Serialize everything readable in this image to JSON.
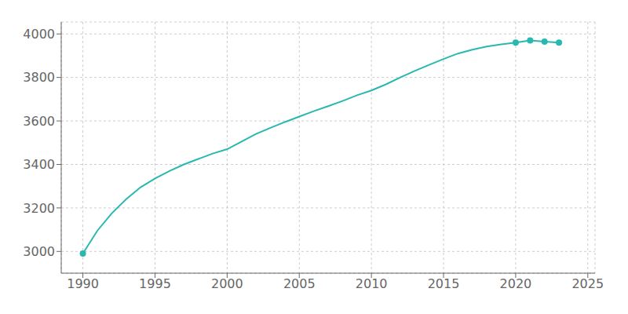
{
  "chart_data": {
    "type": "line",
    "x": [
      1990,
      1991,
      1992,
      1993,
      1994,
      1995,
      1996,
      1997,
      1998,
      1999,
      2000,
      2001,
      2002,
      2003,
      2004,
      2005,
      2006,
      2007,
      2008,
      2009,
      2010,
      2011,
      2012,
      2013,
      2014,
      2015,
      2016,
      2017,
      2018,
      2019,
      2020,
      2021,
      2022,
      2023
    ],
    "series": [
      {
        "type": "line",
        "color": "#29B8B0",
        "values": [
          2990,
          3095,
          3175,
          3240,
          3295,
          3335,
          3370,
          3400,
          3425,
          3450,
          3470,
          3505,
          3540,
          3568,
          3595,
          3620,
          3645,
          3668,
          3692,
          3718,
          3740,
          3768,
          3800,
          3830,
          3858,
          3885,
          3910,
          3928,
          3942,
          3952,
          3960,
          3970,
          3965,
          3960
        ]
      },
      {
        "type": "scatter",
        "color": "#29B8B0",
        "marker": "circle",
        "values": [
          2990,
          null,
          null,
          null,
          null,
          null,
          null,
          null,
          null,
          null,
          null,
          null,
          null,
          null,
          null,
          null,
          null,
          null,
          null,
          null,
          null,
          null,
          null,
          null,
          null,
          null,
          null,
          null,
          null,
          null,
          3960,
          3970,
          3965,
          3960
        ]
      }
    ],
    "xlim": [
      1988.5,
      2025.5
    ],
    "ylim": [
      2900,
      4055
    ],
    "xticks": [
      1990,
      1995,
      2000,
      2005,
      2010,
      2015,
      2020,
      2025
    ],
    "yticks": [
      3000,
      3200,
      3400,
      3600,
      3800,
      4000
    ],
    "grid": true
  }
}
